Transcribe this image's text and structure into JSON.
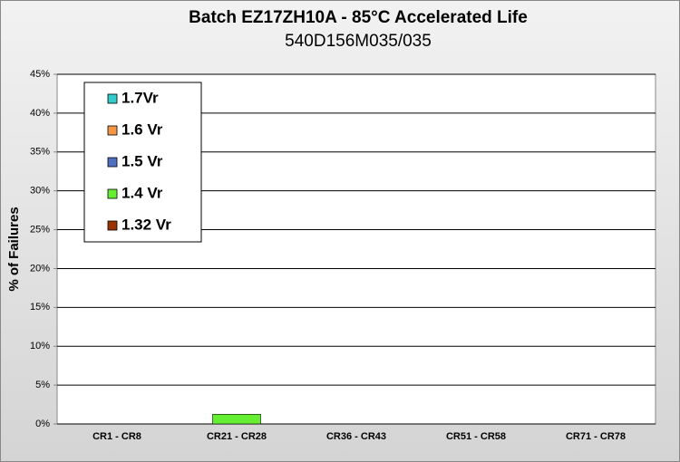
{
  "chart_data": {
    "type": "bar",
    "stacked": true,
    "title": "Batch EZ17ZH10A - 85°C Accelerated Life",
    "subtitle": "540D156M035/035",
    "y_label": "% of Failures",
    "categories": [
      "CR1 - CR8",
      "CR21 - CR28",
      "CR36 - CR43",
      "CR51 - CR58",
      "CR71 - CR78"
    ],
    "series": [
      {
        "name": "1.7Vr",
        "color": "#33cccc",
        "values": [
          0,
          0,
          0,
          0,
          0
        ]
      },
      {
        "name": "1.6 Vr",
        "color": "#f79646",
        "values": [
          0,
          0,
          0,
          0,
          0
        ]
      },
      {
        "name": "1.5 Vr",
        "color": "#4f6fc0",
        "values": [
          0,
          0,
          0,
          0,
          0
        ]
      },
      {
        "name": "1.4 Vr",
        "color": "#66ee33",
        "values": [
          0,
          1.25,
          0,
          0,
          0
        ]
      },
      {
        "name": "1.32 Vr",
        "color": "#993300",
        "values": [
          0,
          0,
          0,
          0,
          0
        ]
      }
    ],
    "ylim": [
      0,
      45
    ],
    "yticks": [
      {
        "value": 0,
        "label": "0%"
      },
      {
        "value": 5,
        "label": "5%"
      },
      {
        "value": 10,
        "label": "10%"
      },
      {
        "value": 15,
        "label": "15%"
      },
      {
        "value": 20,
        "label": "20%"
      },
      {
        "value": 25,
        "label": "25%"
      },
      {
        "value": 30,
        "label": "30%"
      },
      {
        "value": 35,
        "label": "35%"
      },
      {
        "value": 40,
        "label": "40%"
      },
      {
        "value": 45,
        "label": "45%"
      }
    ],
    "grid": true,
    "legend": "top-left"
  }
}
